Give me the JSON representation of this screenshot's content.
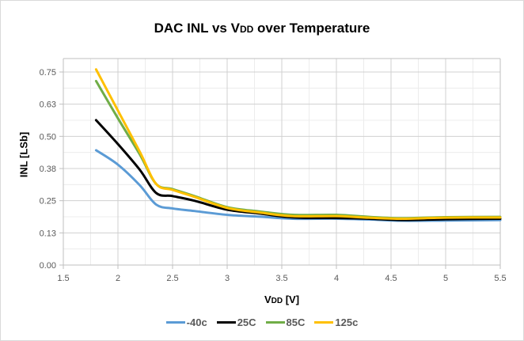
{
  "chart_data": {
    "type": "line",
    "title_main": "DAC INL vs V",
    "title_sub": "DD",
    "title_rest": " over Temperature",
    "xlabel_main": "V",
    "xlabel_sub": "DD",
    "xlabel_rest": " [V]",
    "ylabel": "INL [LSb]",
    "xlim": [
      1.5,
      5.5
    ],
    "ylim": [
      0,
      0.8
    ],
    "xticks": [
      1.5,
      2,
      2.5,
      3,
      3.5,
      4,
      4.5,
      5,
      5.5
    ],
    "xtick_labels": [
      "1.5",
      "2",
      "2.5",
      "3",
      "3.5",
      "4",
      "4.5",
      "5",
      "5.5"
    ],
    "yticks": [
      0,
      0.125,
      0.25,
      0.375,
      0.5,
      0.625,
      0.75
    ],
    "ytick_labels": [
      "0.00",
      "0.13",
      "0.25",
      "0.38",
      "0.50",
      "0.63",
      "0.75"
    ],
    "grid": true,
    "legend_position": "bottom",
    "x": [
      1.8,
      2.0,
      2.2,
      2.35,
      2.5,
      2.7,
      3.0,
      3.3,
      3.6,
      4.0,
      4.3,
      4.6,
      5.0,
      5.5
    ],
    "series": [
      {
        "name": "-40c",
        "color": "#5b9bd5",
        "values": [
          0.446,
          0.39,
          0.31,
          0.235,
          0.22,
          0.21,
          0.195,
          0.188,
          0.18,
          0.18,
          0.177,
          0.172,
          0.173,
          0.175
        ]
      },
      {
        "name": "25C",
        "color": "#000000",
        "values": [
          0.563,
          0.47,
          0.37,
          0.28,
          0.268,
          0.25,
          0.215,
          0.2,
          0.185,
          0.183,
          0.18,
          0.175,
          0.178,
          0.18
        ]
      },
      {
        "name": "85C",
        "color": "#70ad47",
        "values": [
          0.715,
          0.57,
          0.43,
          0.315,
          0.295,
          0.268,
          0.225,
          0.208,
          0.195,
          0.195,
          0.187,
          0.182,
          0.186,
          0.187
        ]
      },
      {
        "name": "125c",
        "color": "#ffc000",
        "values": [
          0.76,
          0.6,
          0.44,
          0.315,
          0.292,
          0.265,
          0.222,
          0.204,
          0.19,
          0.19,
          0.184,
          0.18,
          0.184,
          0.185
        ]
      }
    ]
  }
}
